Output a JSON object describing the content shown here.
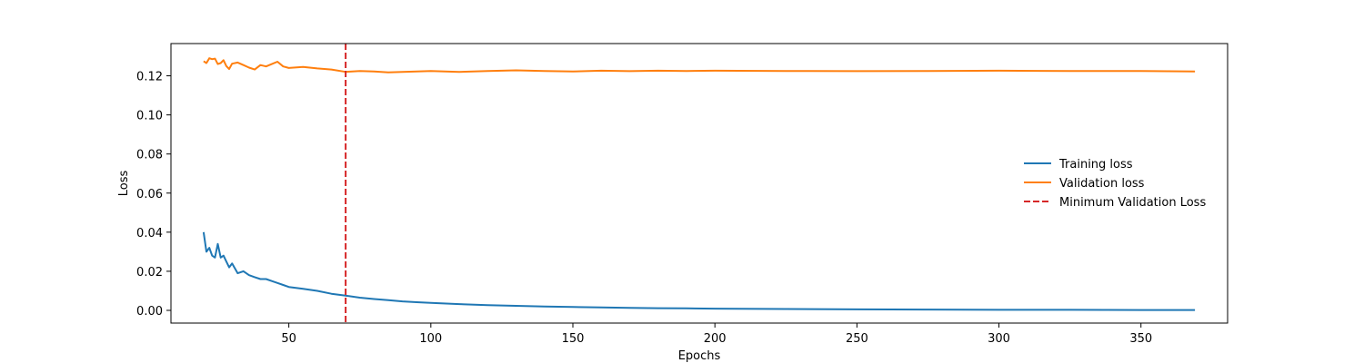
{
  "chart_data": {
    "type": "line",
    "title": "",
    "xlabel": "Epochs",
    "ylabel": "Loss",
    "xlim": [
      8.5,
      380.5
    ],
    "ylim": [
      -0.0065,
      0.1365
    ],
    "xticks": [
      50,
      100,
      150,
      200,
      250,
      300,
      350
    ],
    "xtick_labels": [
      "50",
      "100",
      "150",
      "200",
      "250",
      "300",
      "350"
    ],
    "yticks": [
      0.0,
      0.02,
      0.04,
      0.06,
      0.08,
      0.1,
      0.12
    ],
    "ytick_labels": [
      "0.00",
      "0.02",
      "0.04",
      "0.06",
      "0.08",
      "0.10",
      "0.12"
    ],
    "grid": false,
    "legend_position": "center-right",
    "series": [
      {
        "name": "Training loss",
        "color": "#1f77b4",
        "points": [
          [
            20,
            0.04
          ],
          [
            21,
            0.03
          ],
          [
            22,
            0.032
          ],
          [
            23,
            0.028
          ],
          [
            24,
            0.027
          ],
          [
            25,
            0.034
          ],
          [
            26,
            0.027
          ],
          [
            27,
            0.028
          ],
          [
            28,
            0.025
          ],
          [
            29,
            0.022
          ],
          [
            30,
            0.024
          ],
          [
            32,
            0.019
          ],
          [
            34,
            0.02
          ],
          [
            36,
            0.018
          ],
          [
            38,
            0.017
          ],
          [
            40,
            0.016
          ],
          [
            42,
            0.016
          ],
          [
            44,
            0.015
          ],
          [
            46,
            0.014
          ],
          [
            48,
            0.013
          ],
          [
            50,
            0.012
          ],
          [
            55,
            0.011
          ],
          [
            60,
            0.01
          ],
          [
            65,
            0.0085
          ],
          [
            70,
            0.0075
          ],
          [
            75,
            0.0065
          ],
          [
            80,
            0.0058
          ],
          [
            85,
            0.0052
          ],
          [
            90,
            0.0046
          ],
          [
            95,
            0.0042
          ],
          [
            100,
            0.0038
          ],
          [
            110,
            0.0032
          ],
          [
            120,
            0.0027
          ],
          [
            130,
            0.0023
          ],
          [
            140,
            0.002
          ],
          [
            150,
            0.0017
          ],
          [
            160,
            0.0015
          ],
          [
            170,
            0.0013
          ],
          [
            180,
            0.0011
          ],
          [
            190,
            0.001
          ],
          [
            200,
            0.0009
          ],
          [
            225,
            0.0007
          ],
          [
            250,
            0.0005
          ],
          [
            275,
            0.0004
          ],
          [
            300,
            0.0003
          ],
          [
            325,
            0.0003
          ],
          [
            350,
            0.0002
          ],
          [
            369,
            0.0002
          ]
        ]
      },
      {
        "name": "Validation loss",
        "color": "#ff7f0e",
        "points": [
          [
            20,
            0.1275
          ],
          [
            21,
            0.1265
          ],
          [
            22,
            0.129
          ],
          [
            23,
            0.1285
          ],
          [
            24,
            0.1288
          ],
          [
            25,
            0.126
          ],
          [
            26,
            0.1265
          ],
          [
            27,
            0.128
          ],
          [
            28,
            0.125
          ],
          [
            29,
            0.1235
          ],
          [
            30,
            0.1262
          ],
          [
            32,
            0.1268
          ],
          [
            34,
            0.1255
          ],
          [
            36,
            0.1242
          ],
          [
            38,
            0.1232
          ],
          [
            40,
            0.1255
          ],
          [
            42,
            0.1248
          ],
          [
            44,
            0.126
          ],
          [
            46,
            0.1272
          ],
          [
            48,
            0.1248
          ],
          [
            50,
            0.124
          ],
          [
            55,
            0.1245
          ],
          [
            60,
            0.1238
          ],
          [
            65,
            0.1232
          ],
          [
            70,
            0.122
          ],
          [
            75,
            0.1225
          ],
          [
            80,
            0.1222
          ],
          [
            85,
            0.1218
          ],
          [
            90,
            0.122
          ],
          [
            95,
            0.1222
          ],
          [
            100,
            0.1225
          ],
          [
            110,
            0.122
          ],
          [
            120,
            0.1225
          ],
          [
            130,
            0.1228
          ],
          [
            140,
            0.1225
          ],
          [
            150,
            0.1222
          ],
          [
            160,
            0.1226
          ],
          [
            170,
            0.1224
          ],
          [
            180,
            0.1226
          ],
          [
            190,
            0.1225
          ],
          [
            200,
            0.1226
          ],
          [
            225,
            0.1225
          ],
          [
            250,
            0.1224
          ],
          [
            275,
            0.1225
          ],
          [
            300,
            0.1226
          ],
          [
            325,
            0.1225
          ],
          [
            350,
            0.1225
          ],
          [
            369,
            0.1222
          ]
        ]
      }
    ],
    "vlines": [
      {
        "name": "Minimum Validation Loss",
        "x": 70,
        "color": "#d62728",
        "style": "dashed"
      }
    ]
  }
}
